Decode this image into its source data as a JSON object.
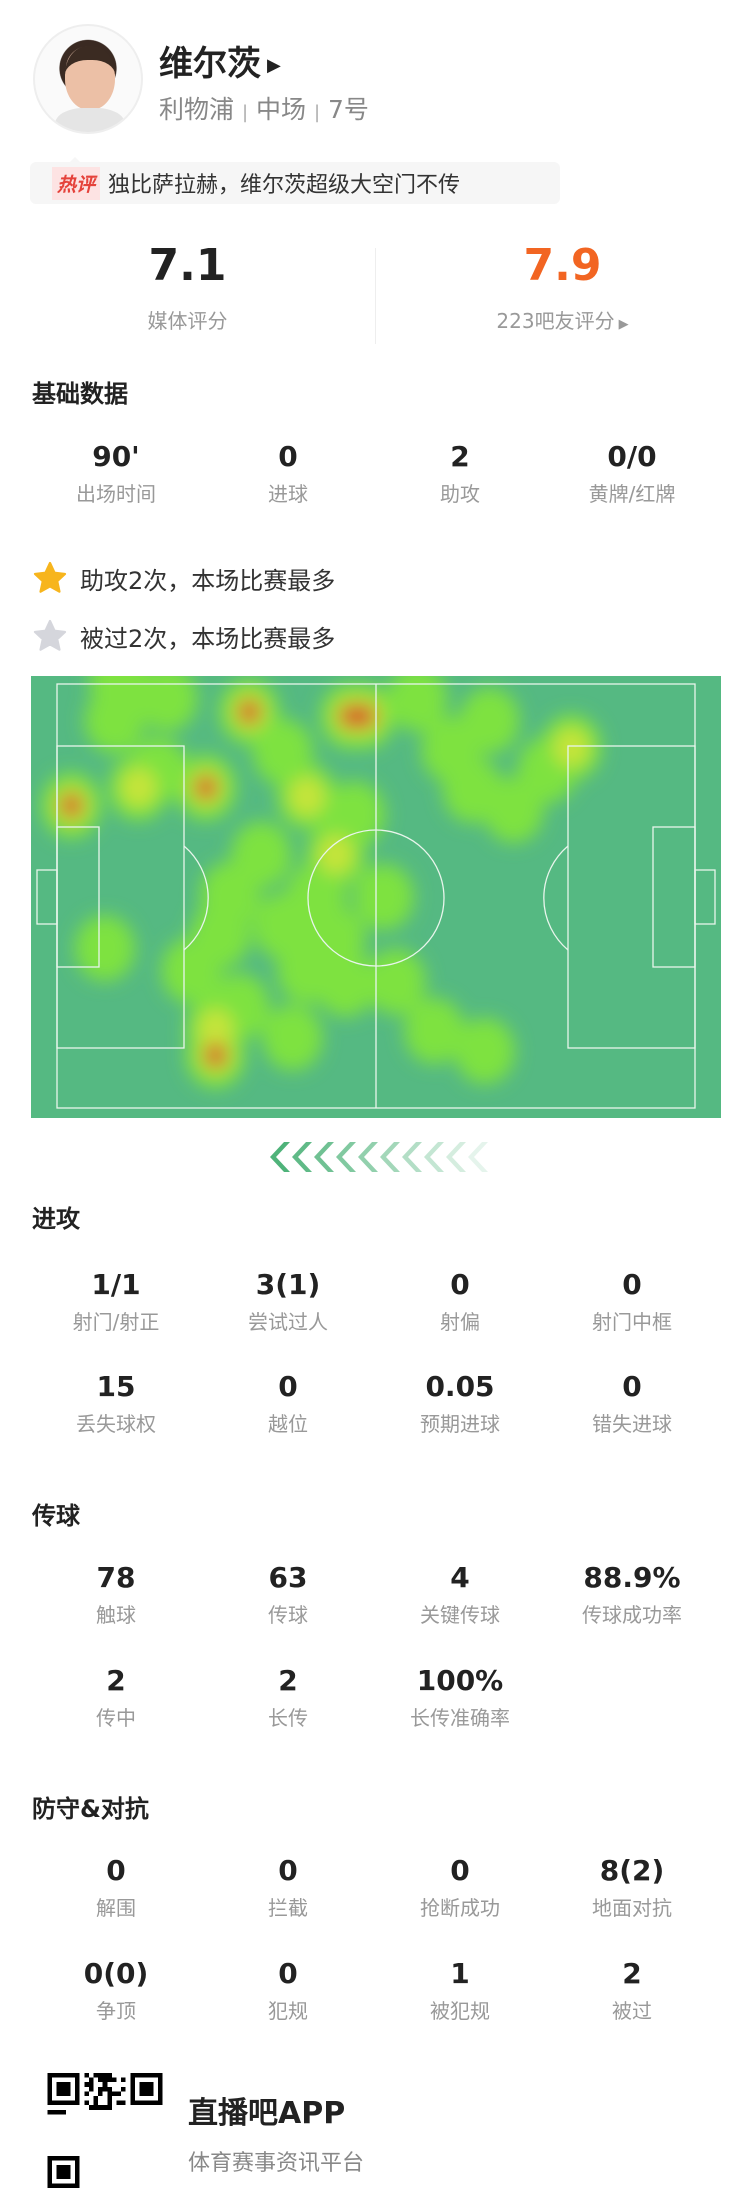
{
  "player": {
    "name": "维尔茨",
    "team": "利物浦",
    "position": "中场",
    "number": "7号",
    "sep": "|"
  },
  "hot_comment": {
    "badge": "热评",
    "text": "独比萨拉赫，维尔茨超级大空门不传"
  },
  "ratings": {
    "media": {
      "value": "7.1",
      "label": "媒体评分"
    },
    "fans": {
      "value": "7.9",
      "label": "223吧友评分",
      "color": "#f26522"
    }
  },
  "basic": {
    "title": "基础数据",
    "stats": [
      {
        "value": "90'",
        "label": "出场时间"
      },
      {
        "value": "0",
        "label": "进球"
      },
      {
        "value": "2",
        "label": "助攻"
      },
      {
        "value": "0/0",
        "label": "黄牌/红牌"
      }
    ]
  },
  "highlights": [
    {
      "icon": "star-gold",
      "text": "助攻2次，本场比赛最多"
    },
    {
      "icon": "star-silver",
      "text": "被过2次，本场比赛最多"
    }
  ],
  "attack": {
    "title": "进攻",
    "stats": [
      {
        "value": "1/1",
        "label": "射门/射正"
      },
      {
        "value": "3(1)",
        "label": "尝试过人"
      },
      {
        "value": "0",
        "label": "射偏"
      },
      {
        "value": "0",
        "label": "射门中框"
      },
      {
        "value": "15",
        "label": "丢失球权"
      },
      {
        "value": "0",
        "label": "越位"
      },
      {
        "value": "0.05",
        "label": "预期进球"
      },
      {
        "value": "0",
        "label": "错失进球"
      }
    ]
  },
  "passing": {
    "title": "传球",
    "stats": [
      {
        "value": "78",
        "label": "触球"
      },
      {
        "value": "63",
        "label": "传球"
      },
      {
        "value": "4",
        "label": "关键传球"
      },
      {
        "value": "88.9%",
        "label": "传球成功率"
      },
      {
        "value": "2",
        "label": "传中"
      },
      {
        "value": "2",
        "label": "长传"
      },
      {
        "value": "100%",
        "label": "长传准确率"
      }
    ]
  },
  "defense": {
    "title": "防守&对抗",
    "stats": [
      {
        "value": "0",
        "label": "解围"
      },
      {
        "value": "0",
        "label": "拦截"
      },
      {
        "value": "0",
        "label": "抢断成功"
      },
      {
        "value": "8(2)",
        "label": "地面对抗"
      },
      {
        "value": "0(0)",
        "label": "争顶"
      },
      {
        "value": "0",
        "label": "犯规"
      },
      {
        "value": "1",
        "label": "被犯规"
      },
      {
        "value": "2",
        "label": "被过"
      }
    ]
  },
  "footer": {
    "app": "直播吧APP",
    "tagline": "体育赛事资讯平台"
  },
  "colors": {
    "pitch": "#55b982",
    "accent": "#f26522"
  }
}
